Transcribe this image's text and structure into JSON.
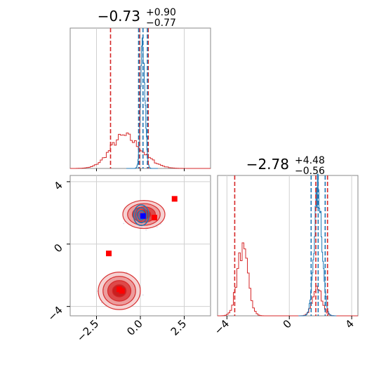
{
  "chart_data": {
    "type": "corner",
    "title_p1": {
      "value": "−0.73",
      "upper": "+0.90",
      "lower": "−0.77"
    },
    "title_p2": {
      "value": "−2.78",
      "upper": "+4.48",
      "lower": "−0.56"
    },
    "p1_ticks": [
      {
        "v": -2.5,
        "label": "−2.5"
      },
      {
        "v": 0.0,
        "label": "0.0"
      },
      {
        "v": 2.5,
        "label": "2.5"
      }
    ],
    "p2_ticks": [
      {
        "v": -4,
        "label": "−4"
      },
      {
        "v": 0,
        "label": "0"
      },
      {
        "v": 4,
        "label": "4"
      }
    ],
    "p1_range": [
      -4.0,
      4.0
    ],
    "p2_range": [
      -4.6,
      4.4
    ],
    "grid": true,
    "series": [
      {
        "color": "#d62728",
        "p1_quantiles": [
          -1.7,
          -0.05,
          0.45
        ],
        "p2_quantiles": [
          -3.5,
          1.7,
          2.45
        ]
      },
      {
        "color": "#1f77b4",
        "p1_quantiles": [
          -0.1,
          0.15,
          0.4
        ],
        "p2_quantiles": [
          1.4,
          1.85,
          2.3
        ]
      }
    ],
    "markers_red": [
      [
        -1.8,
        -0.6
      ],
      [
        -1.2,
        -2.9
      ],
      [
        -1.05,
        -3.0
      ],
      [
        1.95,
        2.9
      ],
      [
        0.8,
        1.7
      ]
    ],
    "markers_blue": [
      [
        0.15,
        1.8
      ]
    ],
    "modes_red": [
      {
        "p1": -1.2,
        "p2": -3.0,
        "w1": 0.6,
        "w2": 0.6
      },
      {
        "p1": 0.2,
        "p2": 1.9,
        "w1": 0.6,
        "w2": 0.45
      }
    ],
    "mode_blue": {
      "p1": 0.05,
      "p2": 1.85,
      "w1": 0.2,
      "w2": 0.3
    }
  }
}
